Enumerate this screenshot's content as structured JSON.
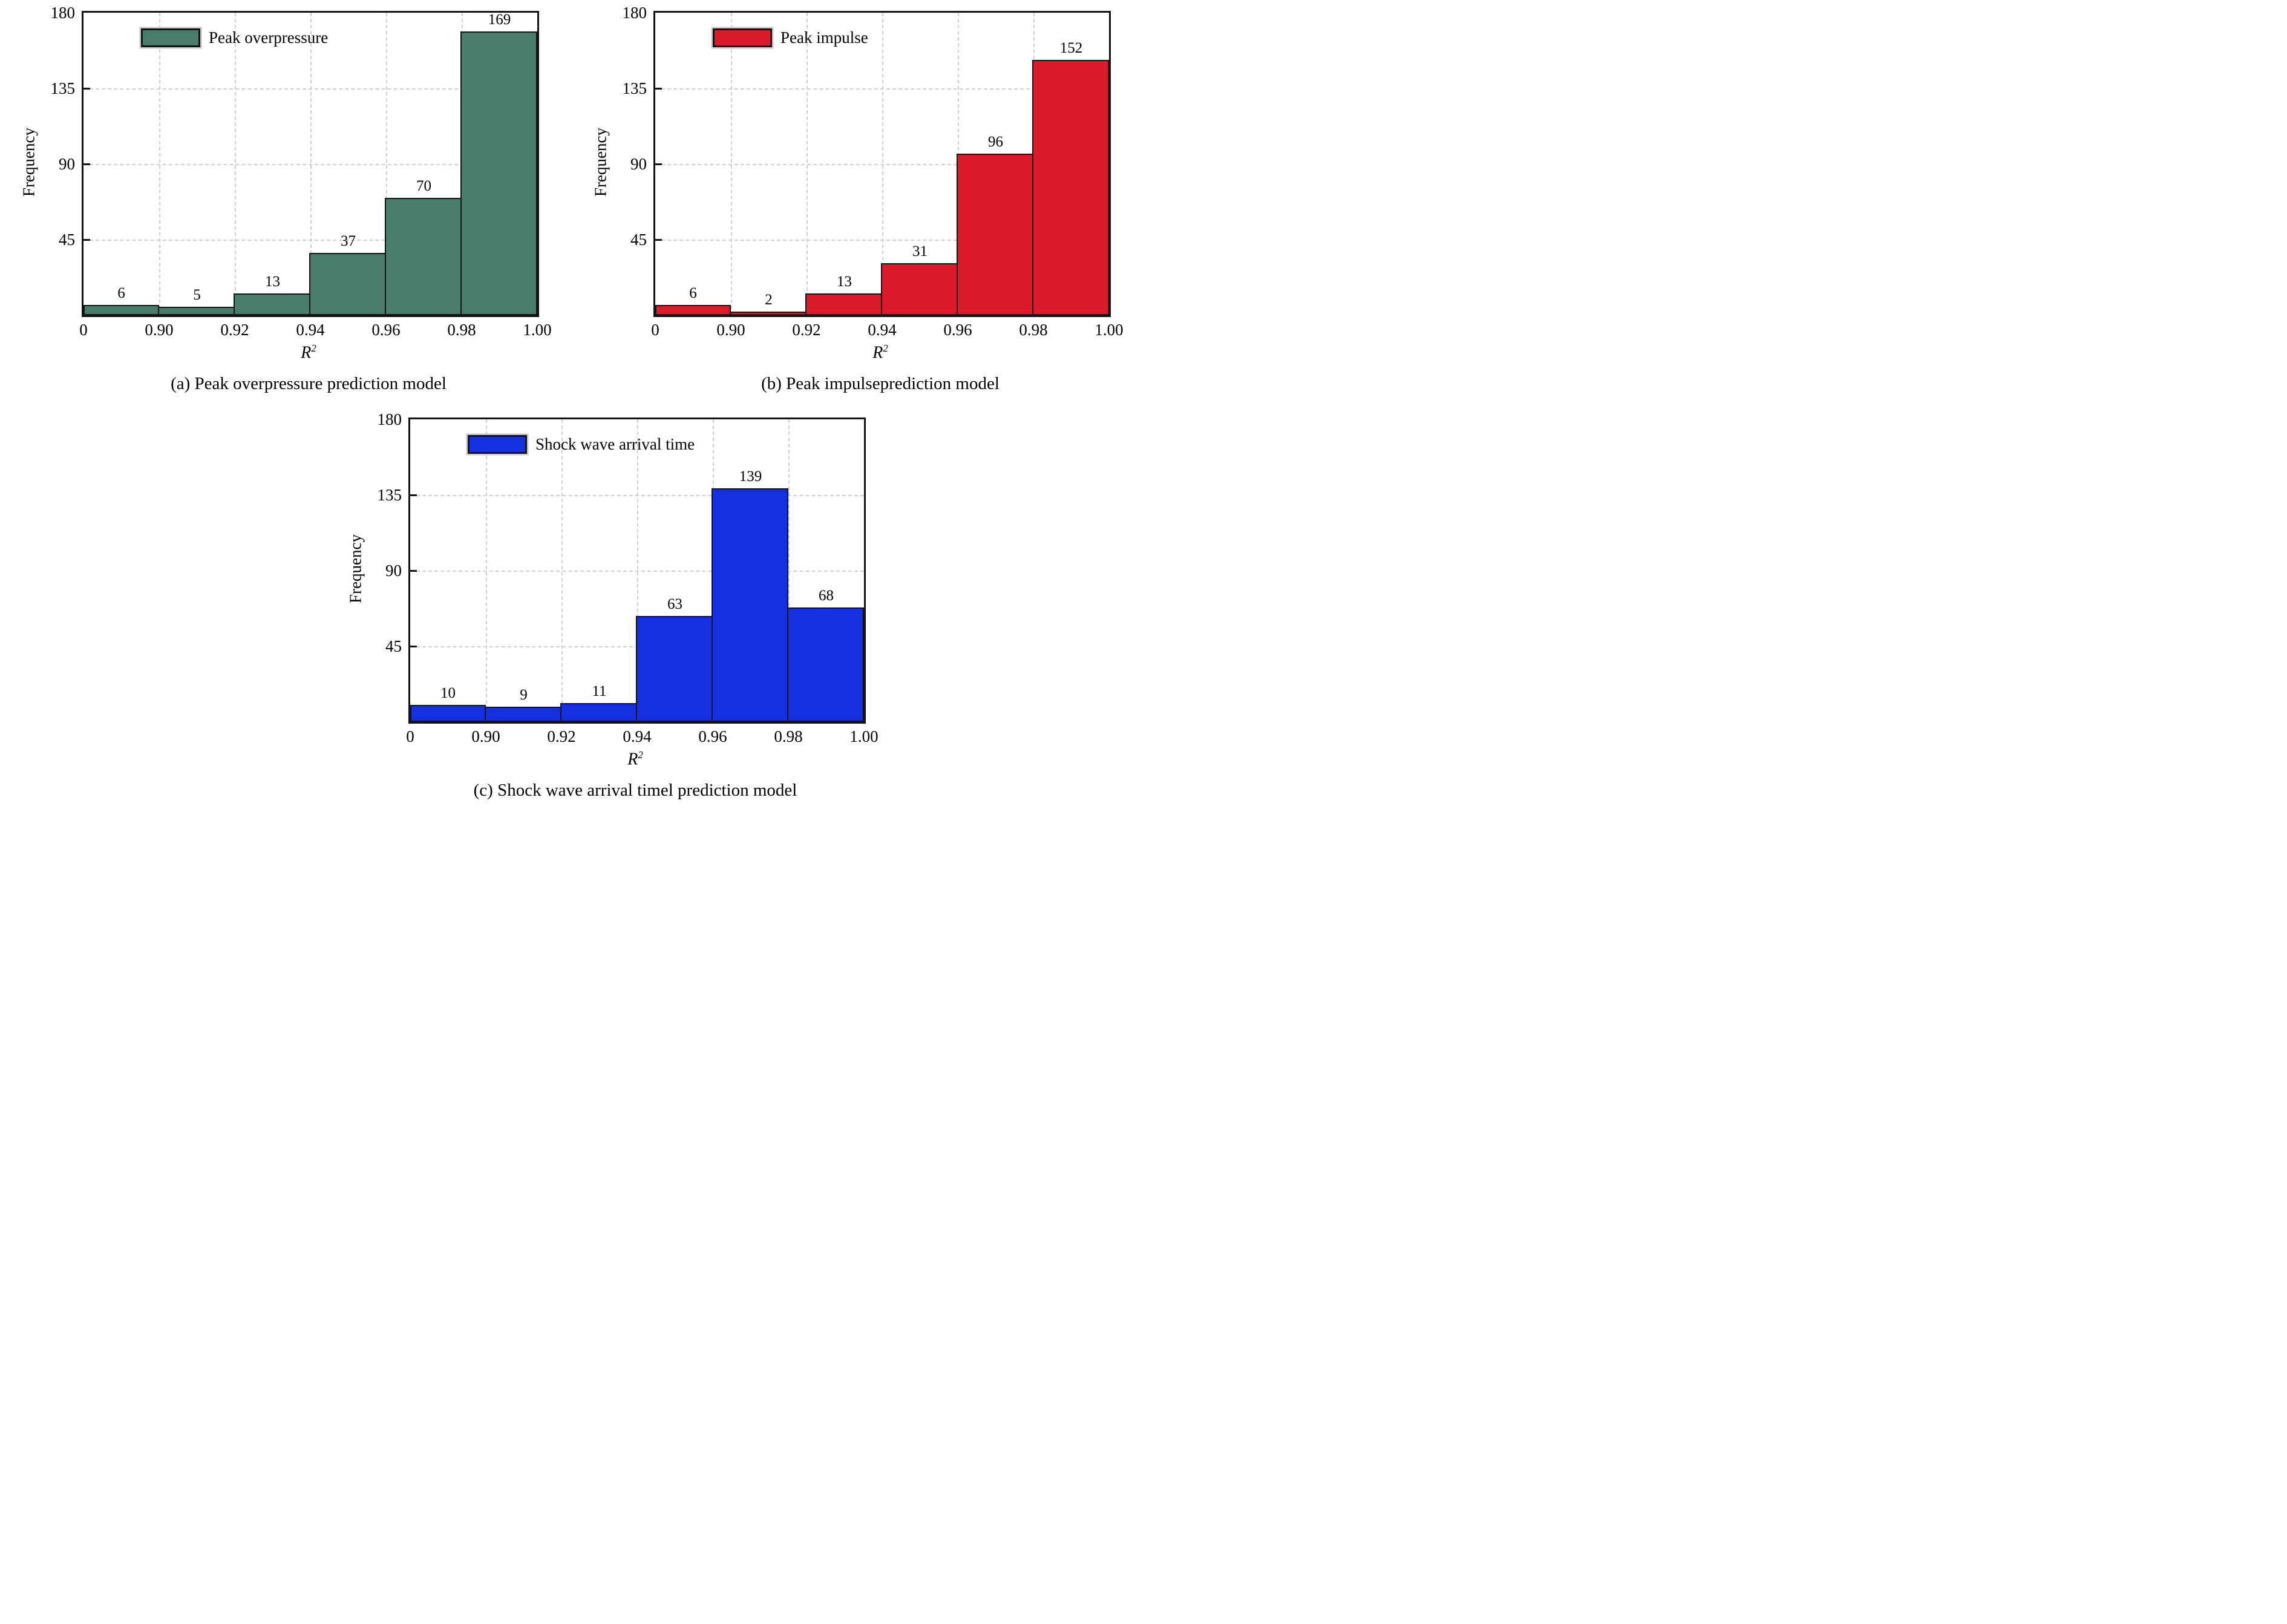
{
  "figure": {
    "ylabel": "Frequency",
    "xlabel": {
      "base": "R",
      "sup": "2"
    },
    "ylim": [
      0,
      180
    ],
    "yticks": [
      0,
      45,
      90,
      135,
      180
    ],
    "xtick_labels": [
      "0",
      "0.90",
      "0.92",
      "0.94",
      "0.96",
      "0.98",
      "1.00"
    ],
    "grid": "dashed light-gray, horizontal at yticks, vertical at bin edges",
    "grid_color": "#ccd3cd",
    "frame_color": "#141414"
  },
  "chart_data": [
    {
      "type": "bar",
      "panel": "a",
      "legend": "Peak overpressure",
      "caption": "(a) Peak overpressure prediction model",
      "bar_color": "#4A7C6C",
      "categories": [
        "0–0.90",
        "0.90–0.92",
        "0.92–0.94",
        "0.94–0.96",
        "0.96–0.98",
        "0.98–1.00"
      ],
      "values": [
        6,
        5,
        13,
        37,
        70,
        169
      ],
      "xlabel": "R²",
      "ylabel": "Frequency",
      "ylim": [
        0,
        180
      ],
      "yticks": [
        0,
        45,
        90,
        135,
        180
      ],
      "xtick_labels": [
        "0",
        "0.90",
        "0.92",
        "0.94",
        "0.96",
        "0.98",
        "1.00"
      ],
      "legend_position": "top-left"
    },
    {
      "type": "bar",
      "panel": "b",
      "legend": "Peak impulse",
      "caption": "(b) Peak impulseprediction model",
      "bar_color": "#DB1A2C",
      "categories": [
        "0–0.90",
        "0.90–0.92",
        "0.92–0.94",
        "0.94–0.96",
        "0.96–0.98",
        "0.98–1.00"
      ],
      "values": [
        6,
        2,
        13,
        31,
        96,
        152
      ],
      "xlabel": "R²",
      "ylabel": "Frequency",
      "ylim": [
        0,
        180
      ],
      "yticks": [
        0,
        45,
        90,
        135,
        180
      ],
      "xtick_labels": [
        "0",
        "0.90",
        "0.92",
        "0.94",
        "0.96",
        "0.98",
        "1.00"
      ],
      "legend_position": "top-left"
    },
    {
      "type": "bar",
      "panel": "c",
      "legend": "Shock wave arrival time",
      "caption": "(c) Shock wave arrival timel prediction model",
      "bar_color": "#1430E0",
      "categories": [
        "0–0.90",
        "0.90–0.92",
        "0.92–0.94",
        "0.94–0.96",
        "0.96–0.98",
        "0.98–1.00"
      ],
      "values": [
        10,
        9,
        11,
        63,
        139,
        68
      ],
      "xlabel": "R²",
      "ylabel": "Frequency",
      "ylim": [
        0,
        180
      ],
      "yticks": [
        0,
        45,
        90,
        135,
        180
      ],
      "xtick_labels": [
        "0",
        "0.90",
        "0.92",
        "0.94",
        "0.96",
        "0.98",
        "1.00"
      ],
      "legend_position": "top-left"
    }
  ]
}
